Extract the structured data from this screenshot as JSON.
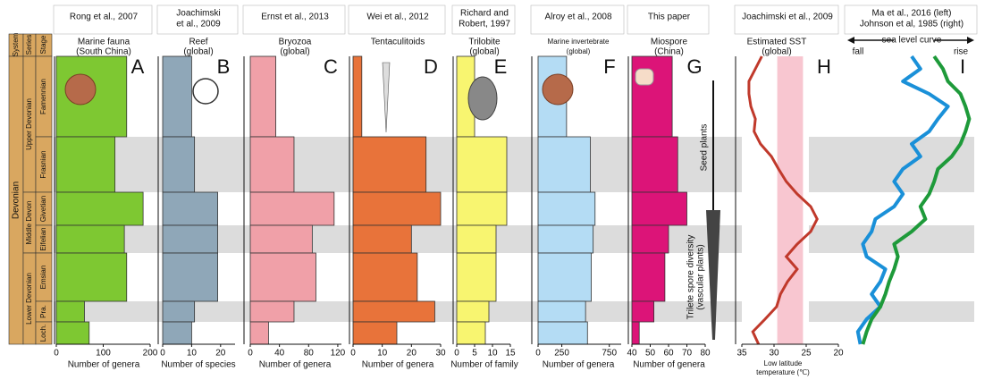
{
  "stratigraphy": {
    "headers": [
      "System",
      "Series",
      "Stage"
    ],
    "system": "Devonian",
    "series": [
      "Upper Devonian",
      "Middle Devon",
      "Lower Devonian"
    ],
    "stages": [
      "Famennian",
      "Frasnian",
      "Givetian",
      "Eifelian",
      "Emsian",
      "Pra.",
      "Loch."
    ]
  },
  "chart_data": [
    {
      "type": "bar",
      "header": [
        "Rong et al., 2007"
      ],
      "title": [
        "Marine fauna",
        "(South China)"
      ],
      "letter": "A",
      "xlabel": "Number of genera",
      "color": "#7ec832",
      "xlim": [
        0,
        200
      ],
      "xticks": [
        0,
        100,
        200
      ],
      "values": [
        150,
        125,
        185,
        145,
        150,
        60,
        70
      ]
    },
    {
      "type": "bar",
      "header": [
        "Joachimski",
        "et al., 2009"
      ],
      "title": [
        "Reef",
        "(global)"
      ],
      "letter": "B",
      "xlabel": "Number of species",
      "color": "#8fa7b8",
      "xlim": [
        0,
        25
      ],
      "xticks": [
        0,
        10,
        20
      ],
      "values": [
        10,
        11,
        19,
        19,
        19,
        11,
        10
      ]
    },
    {
      "type": "bar",
      "header": [
        "Ernst et al., 2013"
      ],
      "title": [
        "Bryozoa",
        "(global)"
      ],
      "letter": "C",
      "xlabel": "Number of genera",
      "color": "#f0a0a8",
      "xlim": [
        0,
        125
      ],
      "xticks": [
        0,
        40,
        80,
        120
      ],
      "values": [
        35,
        60,
        115,
        85,
        90,
        60,
        25
      ]
    },
    {
      "type": "bar",
      "header": [
        "Wei et al., 2012"
      ],
      "title": [
        "Tentaculitoids"
      ],
      "letter": "D",
      "xlabel": "Number of genera",
      "color": "#e8733a",
      "xlim": [
        0,
        30
      ],
      "xticks": [
        0,
        10,
        20,
        30
      ],
      "values": [
        3,
        25,
        30,
        20,
        22,
        28,
        15
      ]
    },
    {
      "type": "bar",
      "header": [
        "Richard and",
        "Robert, 1997"
      ],
      "title": [
        "Trilobite",
        "(global)"
      ],
      "letter": "E",
      "xlabel": "Number of family",
      "color": "#f8f570",
      "xlim": [
        0,
        15
      ],
      "xticks": [
        0,
        5,
        10,
        15
      ],
      "values": [
        5,
        14,
        14,
        11,
        11,
        9,
        8
      ]
    },
    {
      "type": "bar",
      "header": [
        "Alroy et al., 2008"
      ],
      "title": [
        "Marine invertebrate",
        "(global)"
      ],
      "letter": "F",
      "xlabel": "Number of genera",
      "color": "#b4dcf4",
      "xlim": [
        0,
        875
      ],
      "xticks": [
        0,
        250,
        750
      ],
      "values": [
        300,
        550,
        600,
        580,
        560,
        500,
        520
      ]
    },
    {
      "type": "bar",
      "header": [
        "This paper"
      ],
      "title": [
        "Miospore",
        "(China)"
      ],
      "letter": "G",
      "xlabel": "Number of genera",
      "color": "#dc1478",
      "xlim": [
        40,
        80
      ],
      "xticks": [
        40,
        50,
        60,
        70,
        80
      ],
      "values": [
        62,
        65,
        70,
        60,
        58,
        52,
        44
      ],
      "seed_label": "Seed plants",
      "spore_label": [
        "Trilete spore diversity",
        "(vascular plants)"
      ]
    },
    {
      "type": "line",
      "header": [
        "Joachimski et al., 2009"
      ],
      "title": [
        "Estimated SST",
        "(global)"
      ],
      "letter": "H",
      "xlabel": [
        "Low latitude",
        "temperature (℃)"
      ],
      "color": "#c0392b",
      "band_color": "#f6b8c4",
      "band": [
        29.5,
        25.5
      ],
      "xlim": [
        35,
        20
      ],
      "xticks": [
        35,
        30,
        25,
        20
      ],
      "values": [
        31.9,
        32.9,
        33.9,
        33.9,
        33.6,
        32.9,
        33.1,
        32.1,
        30.4,
        29.3,
        28.1,
        26.4,
        24.3,
        23.3,
        24.3,
        26.4,
        28.1,
        26.4,
        27.9,
        29.0,
        29.6,
        31.4,
        33.3,
        32.4
      ]
    },
    {
      "type": "multiline",
      "header": [
        "Ma et al., 2016 (left)",
        "Johnson et al, 1985 (right)"
      ],
      "axis_label": "sea level curve",
      "left_label": "fall",
      "right_label": "rise",
      "letter": "I",
      "xlim": [
        0,
        100
      ],
      "series": [
        {
          "color": "#1a90d8",
          "values": [
            50,
            57,
            43,
            64,
            79,
            71,
            64,
            50,
            57,
            43,
            36,
            43,
            36,
            21,
            18,
            11,
            14,
            29,
            25,
            18,
            25,
            14,
            7,
            9
          ]
        },
        {
          "color": "#1e9a3a",
          "values": [
            68,
            75,
            79,
            89,
            93,
            96,
            93,
            89,
            82,
            71,
            68,
            64,
            57,
            61,
            50,
            36,
            39,
            36,
            32,
            29,
            25,
            18,
            14,
            11
          ]
        }
      ]
    }
  ]
}
